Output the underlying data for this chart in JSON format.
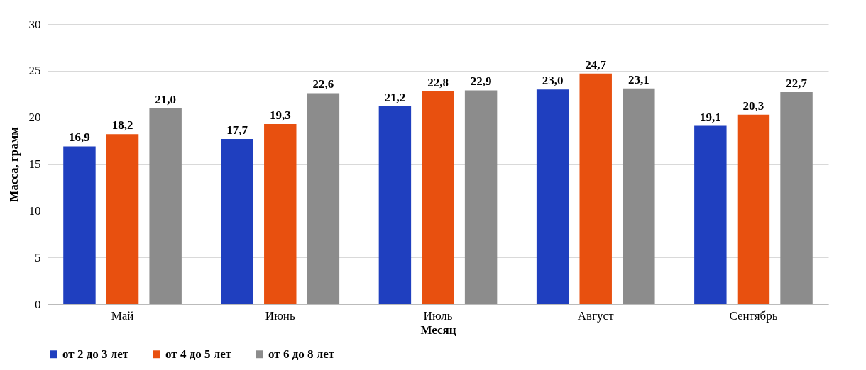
{
  "chart_data": {
    "type": "bar",
    "xlabel": "Месяц",
    "ylabel": "Масса, грамм",
    "categories": [
      "Май",
      "Июнь",
      "Июль",
      "Август",
      "Сентябрь"
    ],
    "ylim": [
      0,
      30
    ],
    "yticks": [
      0,
      5,
      10,
      15,
      20,
      25,
      30
    ],
    "grid": "y",
    "legend": "bottom",
    "series": [
      {
        "name": "от 2 до 3 лет",
        "color": "#1f3fbf",
        "values": [
          16.9,
          17.7,
          21.2,
          23.0,
          19.1
        ],
        "value_labels": [
          "16,9",
          "17,7",
          "21,2",
          "23,0",
          "19,1"
        ]
      },
      {
        "name": "от 4 до 5 лет",
        "color": "#e8500f",
        "values": [
          18.2,
          19.3,
          22.8,
          24.7,
          20.3
        ],
        "value_labels": [
          "18,2",
          "19,3",
          "22,8",
          "24,7",
          "20,3"
        ]
      },
      {
        "name": "от 6 до 8 лет",
        "color": "#8c8c8c",
        "values": [
          21.0,
          22.6,
          22.9,
          23.1,
          22.7
        ],
        "value_labels": [
          "21,0",
          "22,6",
          "22,9",
          "23,1",
          "22,7"
        ]
      }
    ]
  }
}
